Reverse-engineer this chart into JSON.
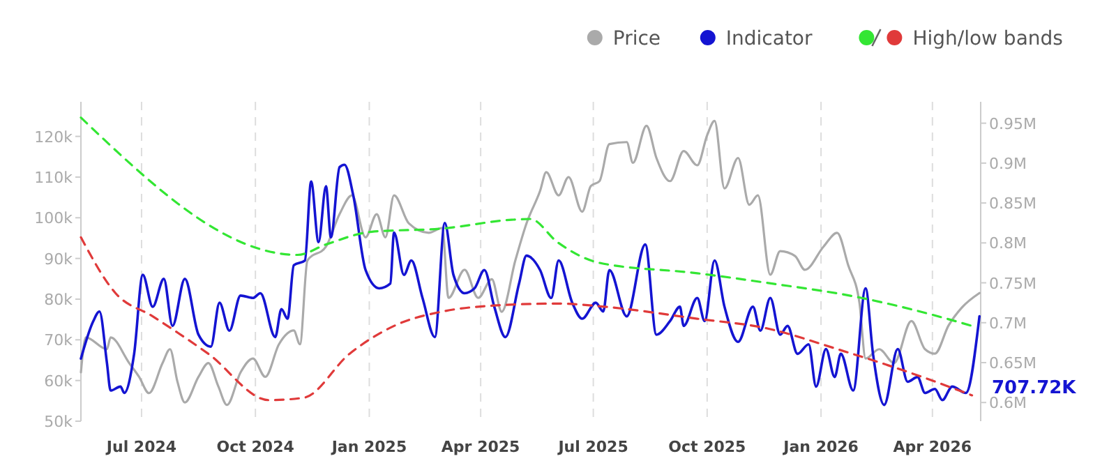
{
  "chart_data": {
    "type": "line",
    "legend": "top right",
    "grid": "x",
    "annotations": [
      "707.72K"
    ],
    "xlim": [
      "2024-05-13",
      "2026-05-10"
    ],
    "xticks": [
      {
        "value": "2024-07-01",
        "label": "Jul 2024"
      },
      {
        "value": "2024-10-01",
        "label": "Oct 2024"
      },
      {
        "value": "2025-01-01",
        "label": "Jan 2025"
      },
      {
        "value": "2025-04-01",
        "label": "Apr 2025"
      },
      {
        "value": "2025-07-01",
        "label": "Jul 2025"
      },
      {
        "value": "2025-10-01",
        "label": "Oct 2025"
      },
      {
        "value": "2026-01-01",
        "label": "Jan 2026"
      },
      {
        "value": "2026-04-01",
        "label": "Apr 2026"
      }
    ],
    "ylim": [
      50000,
      128500
    ],
    "yticks": [
      {
        "value": 50000,
        "label": "50k"
      },
      {
        "value": 60000,
        "label": "60k"
      },
      {
        "value": 70000,
        "label": "70k"
      },
      {
        "value": 80000,
        "label": "80k"
      },
      {
        "value": 90000,
        "label": "90k"
      },
      {
        "value": 100000,
        "label": "100k"
      },
      {
        "value": 110000,
        "label": "110k"
      },
      {
        "value": 120000,
        "label": "120k"
      }
    ],
    "y2lim": [
      576600,
      976800
    ],
    "y2ticks": [
      {
        "value": 600000,
        "label": "0.6M"
      },
      {
        "value": 650000,
        "label": "0.65M"
      },
      {
        "value": 700000,
        "label": "0.7M"
      },
      {
        "value": 750000,
        "label": "0.75M"
      },
      {
        "value": 800000,
        "label": "0.8M"
      },
      {
        "value": 850000,
        "label": "0.85M"
      },
      {
        "value": 900000,
        "label": "0.9M"
      },
      {
        "value": 950000,
        "label": "0.95M"
      }
    ],
    "series": [
      {
        "name": "Price",
        "color": "#aaaaaa",
        "line_style": "solid",
        "x": [
          "2024-05-13",
          "2024-05-17",
          "2024-06-03",
          "2024-06-06",
          "2024-06-21",
          "2024-06-29",
          "2024-07-07",
          "2024-07-18",
          "2024-07-24",
          "2024-07-30",
          "2024-08-05",
          "2024-08-16",
          "2024-08-24",
          "2024-09-01",
          "2024-09-08",
          "2024-09-19",
          "2024-09-29",
          "2024-10-09",
          "2024-10-20",
          "2024-11-01",
          "2024-11-06",
          "2024-11-12",
          "2024-11-27",
          "2024-12-08",
          "2024-12-18",
          "2024-12-29",
          "2025-01-07",
          "2025-01-14",
          "2025-01-21",
          "2025-02-02",
          "2025-02-18",
          "2025-03-01",
          "2025-03-06",
          "2025-03-19",
          "2025-03-30",
          "2025-04-10",
          "2025-04-18",
          "2025-04-29",
          "2025-05-08",
          "2025-05-19",
          "2025-05-24",
          "2025-06-03",
          "2025-06-11",
          "2025-06-22",
          "2025-06-29",
          "2025-07-06",
          "2025-07-14",
          "2025-07-28",
          "2025-08-02",
          "2025-08-13",
          "2025-08-21",
          "2025-09-01",
          "2025-09-12",
          "2025-09-23",
          "2025-10-01",
          "2025-10-07",
          "2025-10-15",
          "2025-10-26",
          "2025-11-04",
          "2025-11-11",
          "2025-11-21",
          "2025-11-29",
          "2025-12-11",
          "2025-12-19",
          "2026-01-03",
          "2026-01-14",
          "2026-01-23",
          "2026-02-01",
          "2026-02-06",
          "2026-02-17",
          "2026-03-01",
          "2026-03-15",
          "2026-03-26",
          "2026-04-03",
          "2026-04-14",
          "2026-04-25",
          "2026-05-09"
        ],
        "values": [
          62000,
          70600,
          67700,
          70600,
          64300,
          60900,
          56900,
          64300,
          67700,
          59700,
          54600,
          60900,
          64300,
          58600,
          54000,
          62000,
          65400,
          60900,
          68900,
          72300,
          68900,
          89500,
          92900,
          100900,
          105500,
          95200,
          100900,
          95200,
          105500,
          98600,
          96300,
          97500,
          80300,
          87200,
          80300,
          84900,
          76900,
          89500,
          98600,
          106600,
          111200,
          105500,
          110000,
          101500,
          107800,
          109000,
          118100,
          118600,
          113500,
          122600,
          114700,
          109000,
          116400,
          112900,
          120300,
          123800,
          107200,
          114700,
          103200,
          105500,
          86000,
          91800,
          90600,
          87200,
          92900,
          96300,
          88300,
          79200,
          65400,
          67700,
          64300,
          74600,
          67700,
          66600,
          73500,
          78000,
          81500
        ]
      },
      {
        "name": "Indicator",
        "color": "#1414d2",
        "axis": "y2",
        "line_style": "solid",
        "x": [
          "2024-05-13",
          "2024-05-23",
          "2024-05-28",
          "2024-06-03",
          "2024-06-06",
          "2024-06-14",
          "2024-06-17",
          "2024-06-25",
          "2024-07-02",
          "2024-07-10",
          "2024-07-19",
          "2024-07-26",
          "2024-08-05",
          "2024-08-16",
          "2024-08-26",
          "2024-09-02",
          "2024-09-10",
          "2024-09-19",
          "2024-09-29",
          "2024-10-05",
          "2024-10-17",
          "2024-10-22",
          "2024-10-27",
          "2024-11-01",
          "2024-11-10",
          "2024-11-15",
          "2024-11-21",
          "2024-11-27",
          "2024-12-01",
          "2024-12-08",
          "2024-12-12",
          "2024-12-19",
          "2024-12-29",
          "2025-01-09",
          "2025-01-18",
          "2025-01-21",
          "2025-01-29",
          "2025-02-04",
          "2025-02-13",
          "2025-02-23",
          "2025-03-03",
          "2025-03-10",
          "2025-03-19",
          "2025-03-27",
          "2025-04-04",
          "2025-04-12",
          "2025-04-21",
          "2025-05-02",
          "2025-05-08",
          "2025-05-19",
          "2025-05-28",
          "2025-06-03",
          "2025-06-14",
          "2025-06-22",
          "2025-07-03",
          "2025-07-09",
          "2025-07-14",
          "2025-07-28",
          "2025-08-12",
          "2025-08-21",
          "2025-09-01",
          "2025-09-09",
          "2025-09-12",
          "2025-09-23",
          "2025-09-29",
          "2025-10-07",
          "2025-10-15",
          "2025-10-26",
          "2025-11-07",
          "2025-11-13",
          "2025-11-21",
          "2025-11-29",
          "2025-12-05",
          "2025-12-13",
          "2025-12-22",
          "2025-12-28",
          "2026-01-05",
          "2026-01-12",
          "2026-01-17",
          "2026-01-27",
          "2026-02-06",
          "2026-02-12",
          "2026-02-21",
          "2026-03-04",
          "2026-03-12",
          "2026-03-20",
          "2026-03-26",
          "2026-04-03",
          "2026-04-09",
          "2026-04-17",
          "2026-04-28",
          "2026-05-09"
        ],
        "values": [
          655000,
          702000,
          714000,
          650000,
          615000,
          620000,
          612000,
          661000,
          760000,
          720000,
          755000,
          696000,
          755000,
          685000,
          670000,
          725000,
          690000,
          734000,
          731000,
          737000,
          682000,
          717000,
          705000,
          772000,
          778000,
          877000,
          801000,
          871000,
          807000,
          895000,
          898000,
          860000,
          766000,
          743000,
          749000,
          813000,
          760000,
          778000,
          731000,
          682000,
          825000,
          760000,
          737000,
          743000,
          766000,
          720000,
          682000,
          749000,
          784000,
          766000,
          731000,
          778000,
          725000,
          705000,
          725000,
          714000,
          766000,
          708000,
          798000,
          685000,
          702000,
          720000,
          696000,
          731000,
          702000,
          778000,
          720000,
          676000,
          720000,
          690000,
          731000,
          685000,
          696000,
          661000,
          673000,
          620000,
          667000,
          632000,
          661000,
          615000,
          743000,
          661000,
          597000,
          667000,
          626000,
          632000,
          612000,
          617000,
          603000,
          620000,
          612000,
          708000
        ]
      },
      {
        "color": "#33e633",
        "axis": "y2",
        "line_style": "dashed",
        "x": [
          "2024-05-13",
          "2024-11-04",
          "2024-11-27",
          "2025-01-03",
          "2025-03-01",
          "2025-04-26",
          "2025-05-11",
          "2025-06-02",
          "2025-07-06",
          "2025-09-23",
          "2025-11-18",
          "2026-02-03",
          "2026-03-22",
          "2026-05-03"
        ],
        "values": [
          957000,
          785000,
          798000,
          814000,
          818000,
          829000,
          830000,
          801000,
          775000,
          762000,
          750000,
          731000,
          714000,
          696000
        ]
      },
      {
        "name": "High/low bands",
        "color": "#e03a3a",
        "axis": "y2",
        "line_style": "dashed",
        "x": [
          "2024-05-13",
          "2024-06-10",
          "2024-07-10",
          "2024-08-24",
          "2024-10-12",
          "2024-11-09",
          "2024-12-16",
          "2025-01-21",
          "2025-03-01",
          "2025-04-07",
          "2025-06-02",
          "2025-07-10",
          "2025-09-23",
          "2025-11-18",
          "2026-01-14",
          "2026-03-22",
          "2026-05-03"
        ],
        "values": [
          807000,
          737000,
          708000,
          661000,
          603000,
          606000,
          661000,
          696000,
          714000,
          721000,
          724000,
          720000,
          705000,
          693000,
          667000,
          633000,
          609000
        ]
      }
    ]
  }
}
